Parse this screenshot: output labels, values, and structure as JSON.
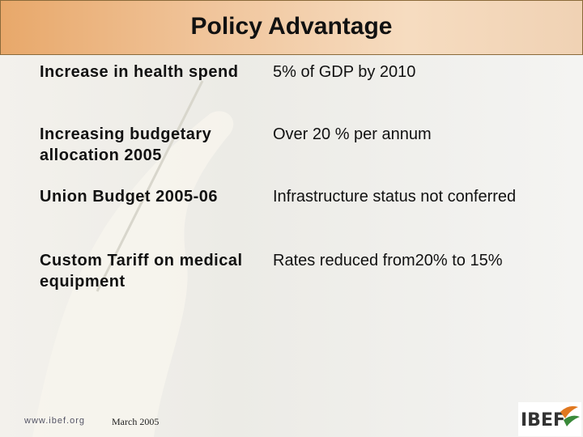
{
  "header": {
    "title": "Policy Advantage"
  },
  "rows": [
    {
      "label": "Increase in health spend",
      "value": "5% of GDP by 2010"
    },
    {
      "label": "Increasing budgetary allocation 2005",
      "value": "Over 20 % per annum"
    },
    {
      "label": "Union Budget 2005-06",
      "value": "Infrastructure status not conferred"
    },
    {
      "label": "Custom Tariff on medical equipment",
      "value": "Rates reduced from20% to 15%"
    }
  ],
  "footer": {
    "site": "www.ibef.org",
    "date": "March  2005",
    "logo": "IBEF"
  }
}
